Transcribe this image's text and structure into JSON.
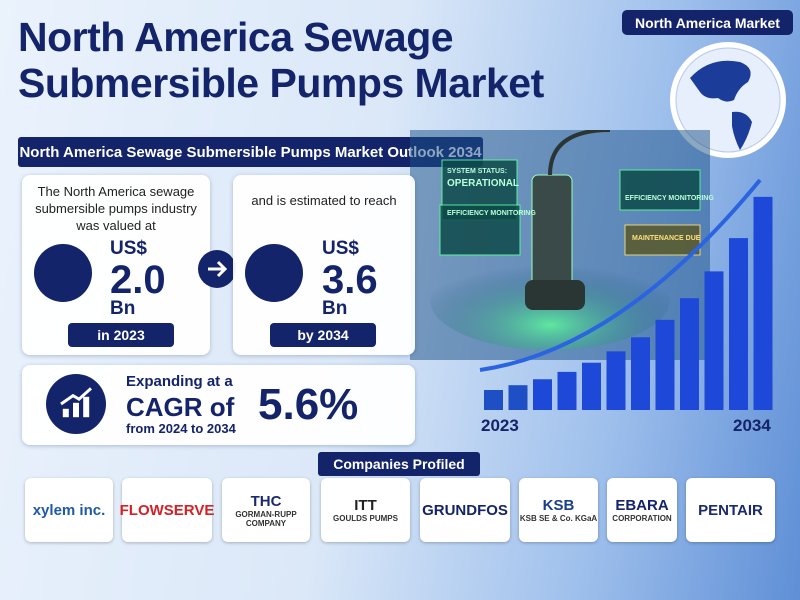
{
  "header": {
    "title_line1": "North America Sewage",
    "title_line2": "Submersible Pumps Market",
    "badge": "North America Market"
  },
  "outlook": {
    "title": "North America Sewage Submersible Pumps Market Outlook 2034"
  },
  "valued": {
    "text": "The North America sewage submersible pumps industry was valued at",
    "currency": "US$",
    "value": "2.0",
    "unit": "Bn",
    "period": "in 2023"
  },
  "estimate": {
    "text": "and is estimated to reach",
    "currency": "US$",
    "value": "3.6",
    "unit": "Bn",
    "period": "by 2034"
  },
  "cagr": {
    "line1": "Expanding at a",
    "line2": "CAGR of",
    "line3": "from 2024 to 2034",
    "value": "5.6%"
  },
  "growth_chart": {
    "start_label": "2023",
    "end_label": "2034"
  },
  "screens": {
    "status_label": "SYSTEM STATUS:",
    "status_value": "OPERATIONAL",
    "efficiency_left": "EFFICIENCY MONITORING",
    "efficiency_right": "EFFICIENCY MONITORING",
    "maintenance": "MAINTENANCE DUE"
  },
  "companies": {
    "title": "Companies Profiled",
    "logos": [
      {
        "name": "xylem inc."
      },
      {
        "name": "FLOWSERVE"
      },
      {
        "name": "THC",
        "sub": "GORMAN-RUPP COMPANY"
      },
      {
        "name": "ITT",
        "sub": "GOULDS PUMPS"
      },
      {
        "name": "GRUNDFOS"
      },
      {
        "name": "KSB",
        "sub": "KSB SE & Co. KGaA"
      },
      {
        "name": "EBARA",
        "sub": "CORPORATION"
      },
      {
        "name": "PENTAIR"
      }
    ]
  }
}
